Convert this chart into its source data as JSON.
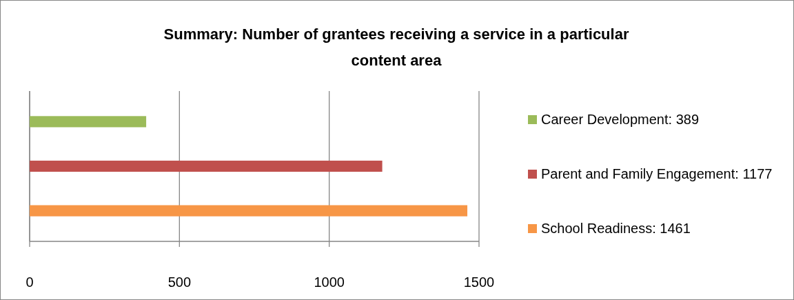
{
  "chart_data": {
    "type": "bar",
    "orientation": "horizontal",
    "title": "Summary: Number of grantees receiving a service in a particular content area",
    "categories": [
      null
    ],
    "series": [
      {
        "name": "Career Development: 389",
        "color": "#9bbb59",
        "values": [
          389
        ]
      },
      {
        "name": "Parent and Family Engagement: 1177",
        "color": "#c0504d",
        "values": [
          1177
        ]
      },
      {
        "name": "School Readiness: 1461",
        "color": "#f79646",
        "values": [
          1461
        ]
      }
    ],
    "xlim": [
      0,
      1500
    ],
    "xticks": [
      0,
      500,
      1000,
      1500
    ],
    "grid": "x",
    "legend": "right"
  }
}
